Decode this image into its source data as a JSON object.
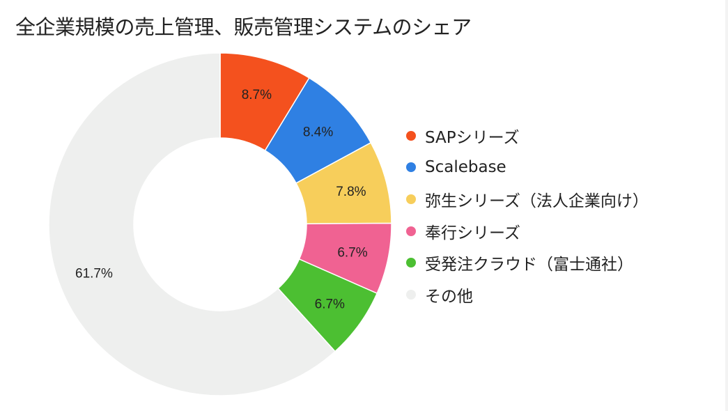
{
  "chart_data": {
    "type": "pie",
    "variant": "donut",
    "title": "全企業規模の売上管理、販売管理システムのシェア",
    "legend_position": "right",
    "slices": [
      {
        "label": "SAPシリーズ",
        "value": 8.7,
        "value_label": "8.7%",
        "color": "#f4511e"
      },
      {
        "label": "Scalebase",
        "value": 8.4,
        "value_label": "8.4%",
        "color": "#2f80e3"
      },
      {
        "label": "弥生シリーズ（法人企業向け）",
        "value": 7.8,
        "value_label": "7.8%",
        "color": "#f7ce5b"
      },
      {
        "label": "奉行シリーズ",
        "value": 6.7,
        "value_label": "6.7%",
        "color": "#f06292"
      },
      {
        "label": "受発注クラウド（富士通社）",
        "value": 6.7,
        "value_label": "6.7%",
        "color": "#4cbf32"
      },
      {
        "label": "その他",
        "value": 61.7,
        "value_label": "61.7%",
        "color": "#eeefee"
      }
    ]
  }
}
